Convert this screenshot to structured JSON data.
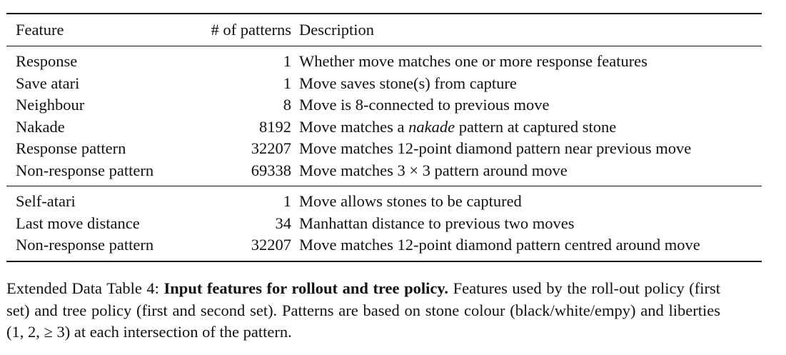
{
  "table": {
    "headers": {
      "feature": "Feature",
      "count": "# of patterns",
      "description": "Description"
    },
    "group1": [
      {
        "feature": "Response",
        "count": "1",
        "description": "Whether move matches one or more response features"
      },
      {
        "feature": "Save atari",
        "count": "1",
        "description": "Move saves stone(s) from capture"
      },
      {
        "feature": "Neighbour",
        "count": "8",
        "description": "Move is 8-connected to previous move"
      },
      {
        "feature": "Nakade",
        "count": "8192",
        "desc_pre": "Move matches a ",
        "desc_em": "nakade",
        "desc_post": " pattern at captured stone"
      },
      {
        "feature": "Response pattern",
        "count": "32207",
        "description": "Move matches 12-point diamond pattern near previous move"
      },
      {
        "feature": "Non-response pattern",
        "count": "69338",
        "description": "Move matches 3 × 3 pattern around move"
      }
    ],
    "group2": [
      {
        "feature": "Self-atari",
        "count": "1",
        "description": "Move allows stones to be captured"
      },
      {
        "feature": "Last move distance",
        "count": "34",
        "description": "Manhattan distance to previous two moves"
      },
      {
        "feature": "Non-response pattern",
        "count": "32207",
        "description": "Move matches 12-point diamond pattern centred around move"
      }
    ]
  },
  "caption": {
    "label": "Extended Data Table 4:",
    "title": "Input features for rollout and tree policy.",
    "body": "Features used by the roll-out policy (first set) and tree policy (first and second set). Patterns are based on stone colour (black/white/empy) and liberties (1, 2, ≥ 3) at each intersection of the pattern."
  }
}
